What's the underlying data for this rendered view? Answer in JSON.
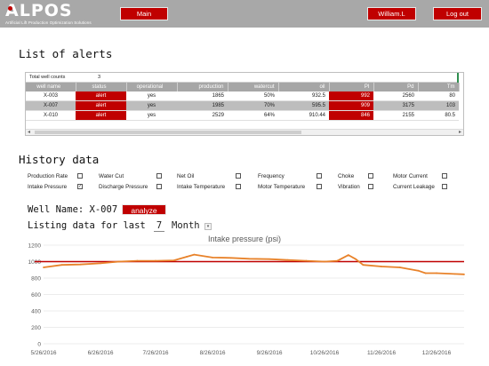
{
  "header": {
    "logo_text": "ALPOS",
    "logo_tagline": "Artificial Lift Production Optimization Solutions",
    "main_button": "Main",
    "user_button": "William.L",
    "logout_button": "Log out",
    "accent_color": "#c00000"
  },
  "alerts": {
    "title": "List of alerts",
    "total_label": "Total well counts",
    "total_value": "3",
    "columns": [
      "well name",
      "status",
      "operational",
      "production",
      "watercut",
      "oil",
      "PI",
      "Pd",
      "Tm"
    ],
    "rows": [
      {
        "well": "X-003",
        "status": "alert",
        "operational": "yes",
        "production": "1865",
        "watercut": "50%",
        "oil": "932.5",
        "pi": "992",
        "pd": "2560",
        "tm": "80"
      },
      {
        "well": "X-007",
        "status": "alert",
        "operational": "yes",
        "production": "1985",
        "watercut": "70%",
        "oil": "595.5",
        "pi": "909",
        "pd": "3175",
        "tm": "103"
      },
      {
        "well": "X-010",
        "status": "alert",
        "operational": "yes",
        "production": "2529",
        "watercut": "64%",
        "oil": "910.44",
        "pi": "846",
        "pd": "2155",
        "tm": "80.5"
      }
    ]
  },
  "history": {
    "title": "History data",
    "checkboxes": [
      {
        "label": "Production Rate",
        "checked": false
      },
      {
        "label": "Water Cut",
        "checked": false
      },
      {
        "label": "Net Oil",
        "checked": false
      },
      {
        "label": "Frequency",
        "checked": false
      },
      {
        "label": "Choke",
        "checked": false
      },
      {
        "label": "Motor Current",
        "checked": false
      },
      {
        "label": "Intake Pressure",
        "checked": true
      },
      {
        "label": "Discharge Pressure",
        "checked": false
      },
      {
        "label": "Intake Temperature",
        "checked": false
      },
      {
        "label": "Motor Temperature",
        "checked": false
      },
      {
        "label": "Vibration",
        "checked": false
      },
      {
        "label": "Current Leakage",
        "checked": false
      }
    ],
    "well_name_label": "Well Name: X-007",
    "analyze_button": "analyze",
    "listing_label": "Listing data for last",
    "listing_value": "7",
    "listing_unit": "Month",
    "dropdown_icon": "chevron-down-icon"
  },
  "chart_data": {
    "type": "line",
    "title": "Intake pressure (psi)",
    "xlabel": "",
    "ylabel": "",
    "x_ticks": [
      "5/26/2016",
      "6/26/2016",
      "7/26/2016",
      "8/26/2016",
      "9/26/2016",
      "10/26/2016",
      "11/26/2016",
      "12/26/2016"
    ],
    "y_ticks": [
      0,
      200,
      400,
      600,
      800,
      1000,
      1200
    ],
    "ylim": [
      0,
      1200
    ],
    "xlim": [
      "5/26/2016",
      "1/10/2017"
    ],
    "grid": true,
    "threshold": {
      "value": 1000,
      "color": "#c00000"
    },
    "series": [
      {
        "color": "#e8822a",
        "x": [
          "5/26/2016",
          "6/5/2016",
          "6/15/2016",
          "6/26/2016",
          "7/6/2016",
          "7/16/2016",
          "7/26/2016",
          "8/5/2016",
          "8/12/2016",
          "8/16/2016",
          "8/26/2016",
          "9/5/2016",
          "9/15/2016",
          "9/26/2016",
          "10/6/2016",
          "10/16/2016",
          "10/26/2016",
          "11/2/2016",
          "11/8/2016",
          "11/12/2016",
          "11/16/2016",
          "11/26/2016",
          "12/6/2016",
          "12/16/2016",
          "12/20/2016",
          "12/26/2016",
          "1/5/2017",
          "1/10/2017"
        ],
        "y": [
          930,
          960,
          965,
          980,
          1000,
          1010,
          1010,
          1015,
          1060,
          1085,
          1050,
          1045,
          1035,
          1030,
          1020,
          1010,
          1000,
          1010,
          1080,
          1030,
          960,
          940,
          930,
          890,
          860,
          860,
          850,
          845
        ]
      }
    ]
  }
}
